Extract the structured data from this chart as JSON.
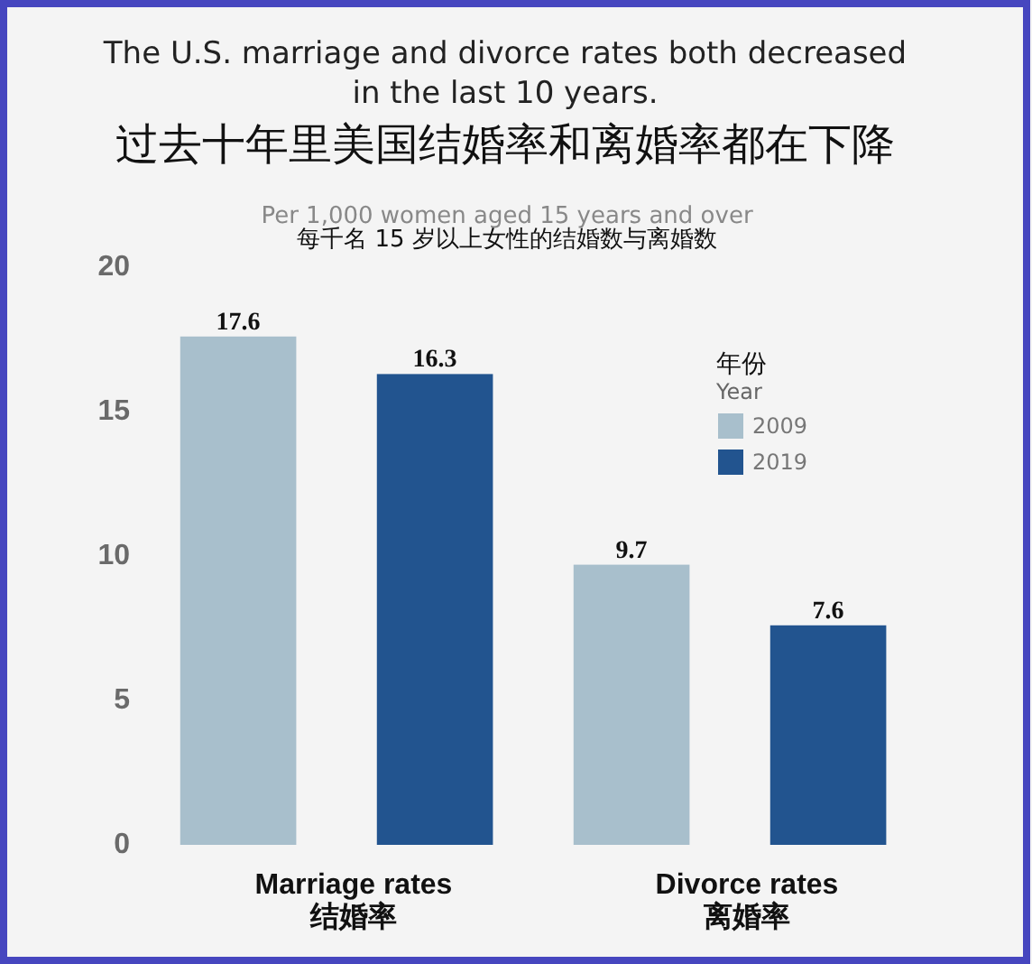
{
  "chart_data": {
    "type": "bar",
    "title": "The U.S. marriage and divorce rates both decreased\nin the last 10 years.\n过去十年里美国结婚率和离婚率都在下降",
    "subtitle": "Per 1,000 women aged 15 years and over\n每千名 15 岁以上女性的结婚数与离婚数",
    "legend_title": "年份\nYear",
    "categories": [
      "Marriage rates\n结婚率",
      "Divorce rates\n离婚率"
    ],
    "series": [
      {
        "name": "2009",
        "color": "#a8bfcc",
        "values": [
          17.6,
          9.7
        ]
      },
      {
        "name": "2019",
        "color": "#22548f",
        "values": [
          16.3,
          7.6
        ]
      }
    ],
    "ylim": [
      0,
      20
    ],
    "yticks": [
      0,
      5,
      10,
      15,
      20
    ],
    "legend": "top right",
    "data_labels": true
  }
}
